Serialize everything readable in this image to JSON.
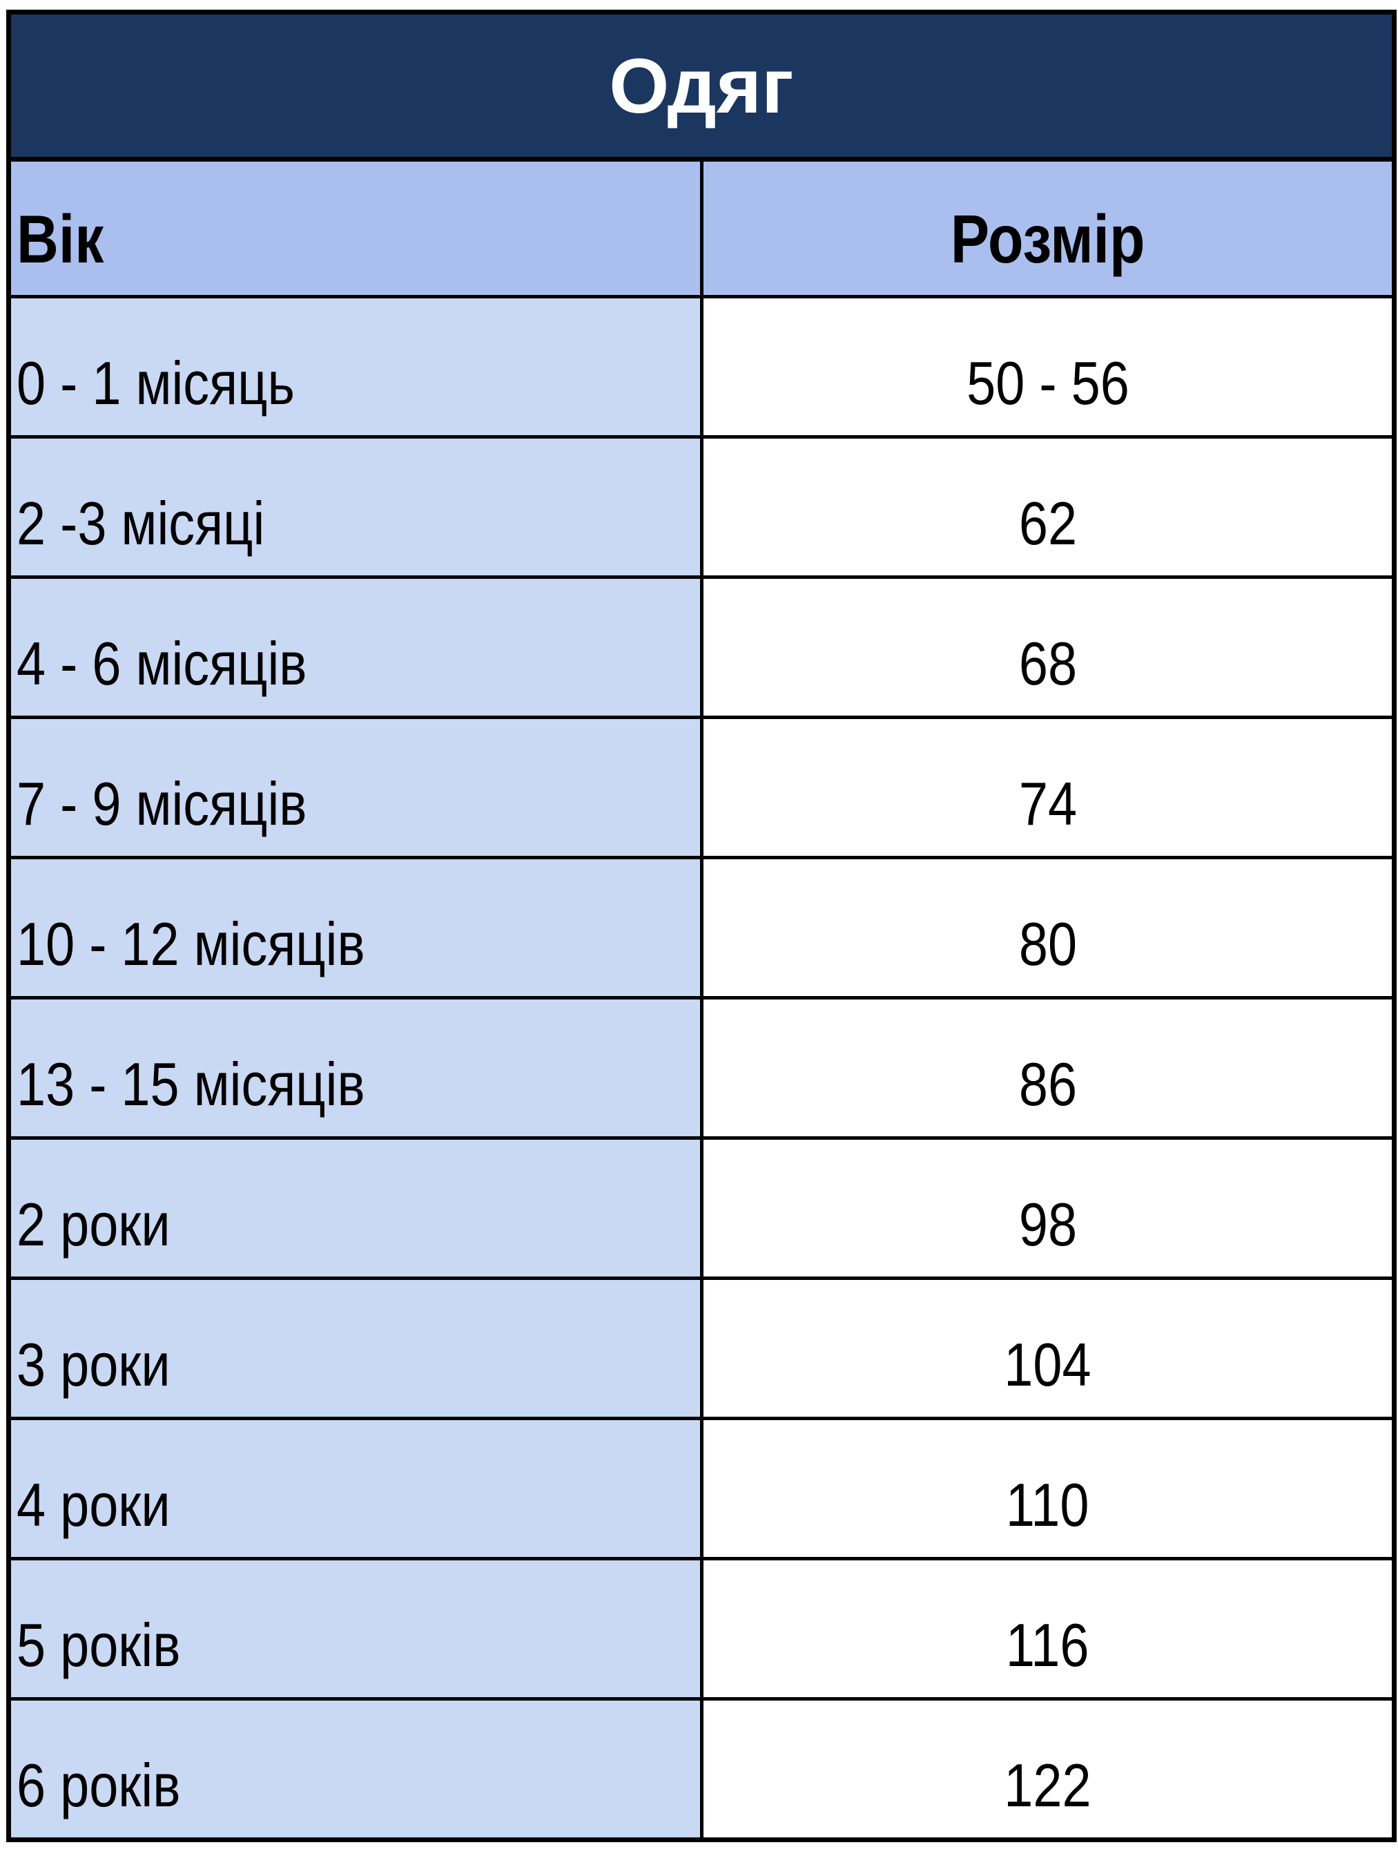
{
  "title": "Одяг",
  "headers": {
    "age": "Вік",
    "size": "Розмір"
  },
  "rows": [
    {
      "age": "0 - 1 місяць",
      "size": "50 - 56"
    },
    {
      "age": "2 -3 місяці",
      "size": "62"
    },
    {
      "age": "4 - 6 місяців",
      "size": "68"
    },
    {
      "age": "7 - 9 місяців",
      "size": "74"
    },
    {
      "age": "10 - 12 місяців",
      "size": "80"
    },
    {
      "age": "13 - 15 місяців",
      "size": "86"
    },
    {
      "age": "2 роки",
      "size": "98"
    },
    {
      "age": "3 роки",
      "size": "104"
    },
    {
      "age": "4 роки",
      "size": "110"
    },
    {
      "age": "5 років",
      "size": "116"
    },
    {
      "age": "6 років",
      "size": "122"
    }
  ],
  "colors": {
    "title_bg": "#1b365f",
    "header_bg": "#aabfed",
    "age_cell_bg": "#c9d8f3",
    "size_cell_bg": "#ffffff"
  }
}
